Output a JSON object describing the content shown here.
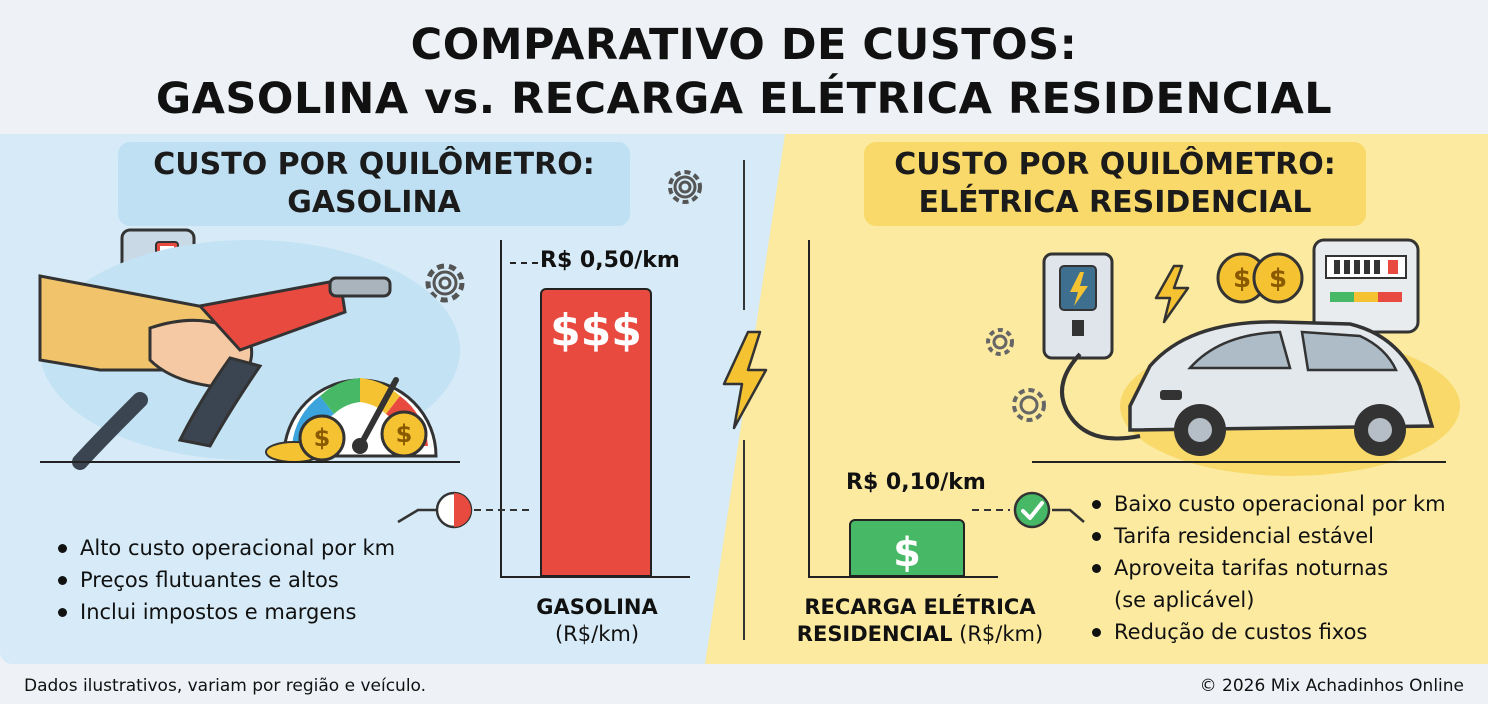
{
  "title_line1": "COMPARATIVO DE CUSTOS:",
  "title_line2": "GASOLINA vs. RECARGA ELÉTRICA RESIDENCIAL",
  "left": {
    "heading_line1": "CUSTO POR QUILÔMETRO:",
    "heading_line2": "GASOLINA",
    "bar_value_label": "R$ 0,50/km",
    "bar_symbol": "$$$",
    "category_line1": "GASOLINA",
    "category_line2": "(R$/km)",
    "bullets": [
      "Alto custo operacional por km",
      "Preços flutuantes e altos",
      "Inclui impostos e margens"
    ]
  },
  "right": {
    "heading_line1": "CUSTO POR QUILÔMETRO:",
    "heading_line2": "ELÉTRICA RESIDENCIAL",
    "bar_value_label": "R$ 0,10/km",
    "bar_symbol": "$",
    "category_line1": "RECARGA ELÉTRICA",
    "category_line2_bold": "RESIDENCIAL",
    "category_line2_rest": " (R$/km)",
    "bullets": [
      "Baixo custo operacional por km",
      "Tarifa residencial estável",
      "Aproveita tarifas noturnas",
      "(se aplicável)",
      "Redução de custos fixos"
    ]
  },
  "footer_left": "Dados ilustrativos, variam por região e veículo.",
  "footer_right": "© 2026 Mix Achadinhos Online",
  "chart_data": {
    "type": "bar",
    "categories": [
      "GASOLINA (R$/km)",
      "RECARGA ELÉTRICA RESIDENCIAL (R$/km)"
    ],
    "values": [
      0.5,
      0.1
    ],
    "title": "COMPARATIVO DE CUSTOS: GASOLINA vs. RECARGA ELÉTRICA RESIDENCIAL",
    "ylim": [
      0,
      0.55
    ],
    "grid": false
  },
  "colors": {
    "gasoline_bar": "#e84a3f",
    "electric_bar": "#47b865",
    "left_panel": "#d6ebf7",
    "right_panel": "#fbeaa0"
  },
  "icons": [
    "fuel-pump-sign-icon",
    "fuel-nozzle-icon",
    "gauge-icon",
    "coin-icon",
    "gear-icon",
    "lightning-icon",
    "ev-charger-icon",
    "electric-car-icon",
    "energy-meter-icon",
    "checkmark-icon"
  ]
}
